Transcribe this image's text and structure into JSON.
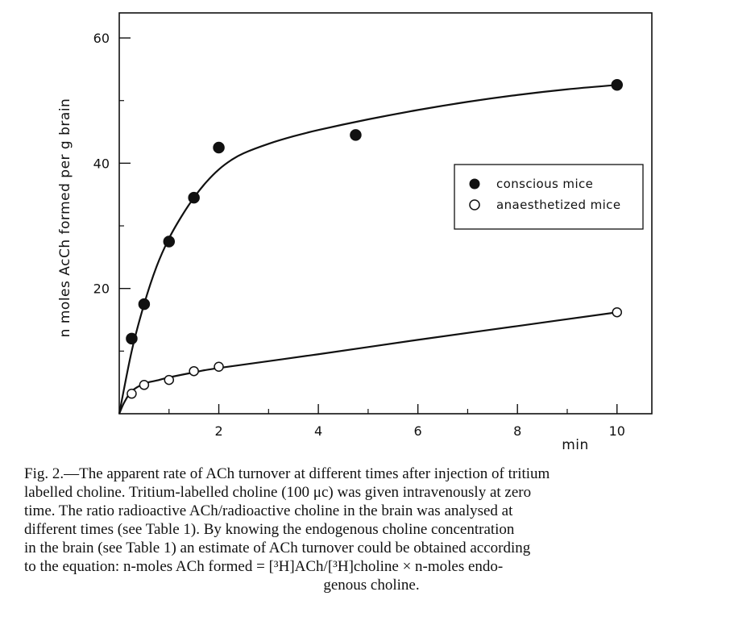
{
  "chart_data": {
    "type": "scatter",
    "title": "",
    "xlabel": "min",
    "ylabel": "n moles AcCh formed per g brain",
    "xlim": [
      0,
      10.7
    ],
    "ylim": [
      0,
      64
    ],
    "x_ticks": [
      2,
      4,
      6,
      8,
      10
    ],
    "x_tick_labels": [
      "2",
      "4",
      "6",
      "8",
      "10"
    ],
    "y_ticks": [
      20,
      40,
      60
    ],
    "y_tick_labels": [
      "20",
      "40",
      "60"
    ],
    "grid": false,
    "legend_position": "right",
    "series": [
      {
        "name": "conscious mice",
        "marker": "filled-circle",
        "x": [
          0.25,
          0.5,
          1.0,
          1.5,
          2.0,
          4.75,
          10.0
        ],
        "y": [
          12,
          17.5,
          27.5,
          34.5,
          42.5,
          44.5,
          52.5
        ],
        "curve_x": [
          0,
          0.25,
          0.5,
          0.75,
          1.0,
          1.25,
          1.5,
          1.75,
          2.0,
          2.25,
          2.5,
          3.0,
          3.5,
          4.0,
          5.0,
          6.0,
          7.0,
          8.0,
          9.0,
          10.0
        ],
        "curve_y": [
          0,
          10,
          17.5,
          23.5,
          28,
          31.5,
          34.5,
          37,
          39,
          40.5,
          41.6,
          43.1,
          44.3,
          45.3,
          47,
          48.5,
          49.8,
          50.9,
          51.8,
          52.5
        ]
      },
      {
        "name": "anaesthetized mice",
        "marker": "open-circle",
        "x": [
          0.25,
          0.5,
          1.0,
          1.5,
          2.0,
          10.0
        ],
        "y": [
          3.2,
          4.6,
          5.4,
          6.8,
          7.5,
          16.2
        ],
        "curve_x": [
          0,
          0.1,
          0.25,
          0.5,
          0.75,
          1.0,
          1.5,
          2.0,
          4.0,
          6.0,
          8.0,
          10.0
        ],
        "curve_y": [
          0,
          1.8,
          3.6,
          4.8,
          5.3,
          5.8,
          6.6,
          7.3,
          9.5,
          11.8,
          14.0,
          16.2
        ]
      }
    ]
  },
  "caption": {
    "lines": [
      "Fig. 2.—The apparent rate of ACh turnover at different times after injection of tritium",
      "labelled choline.  Tritium-labelled choline (100 μc) was given intravenously at zero",
      "time.  The ratio radioactive ACh/radioactive choline in the brain was analysed at",
      "different times (see Table 1).  By knowing the endogenous choline concentration",
      "in the brain (see Table 1) an estimate of ACh turnover could be obtained according",
      "to  the  equation:  n-moles  ACh  formed = [³H]ACh/[³H]choline × n-moles  endo-"
    ],
    "last_line": "genous choline."
  }
}
